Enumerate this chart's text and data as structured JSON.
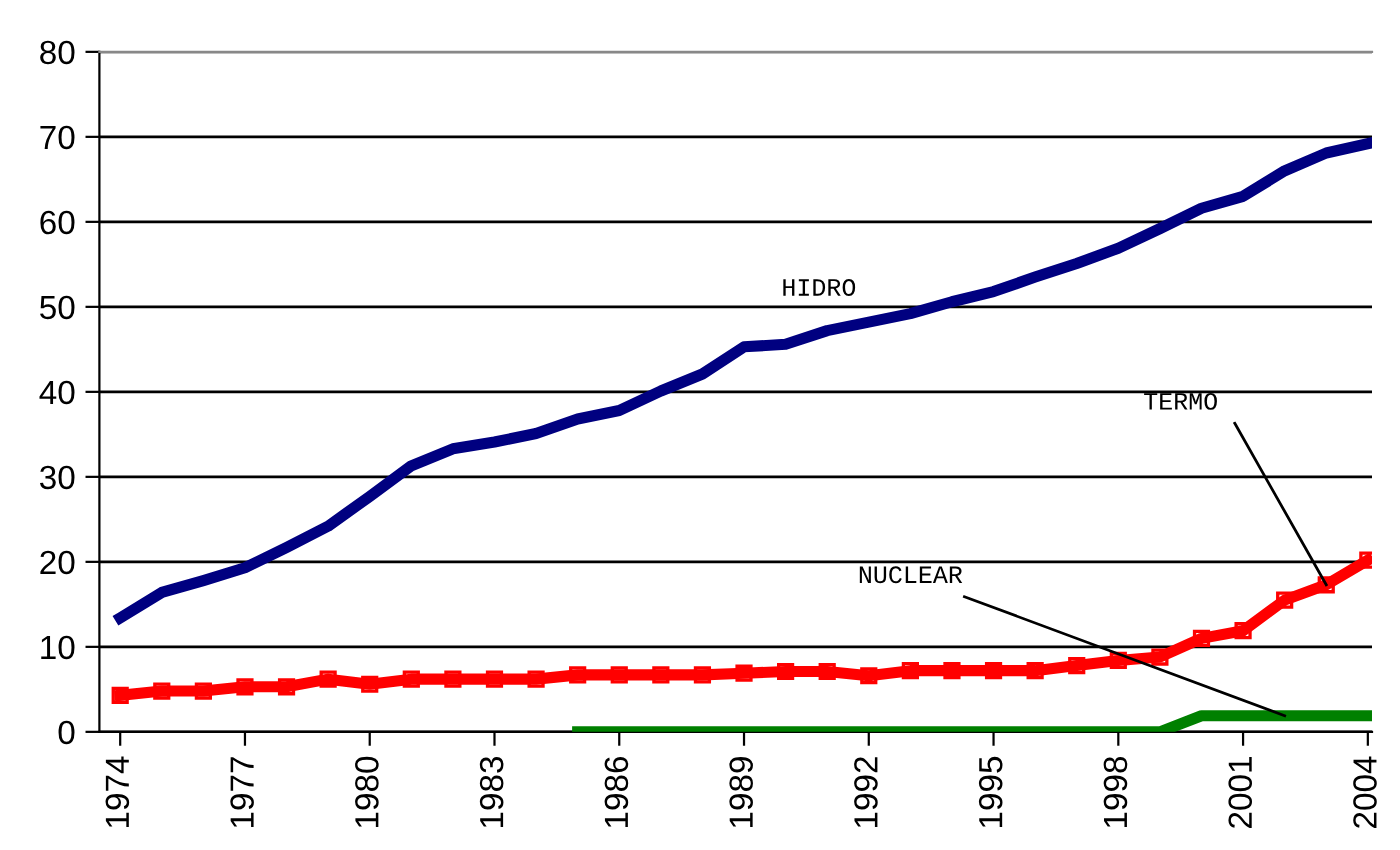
{
  "chart_data": {
    "type": "line",
    "x": [
      1974,
      1975,
      1976,
      1977,
      1978,
      1979,
      1980,
      1981,
      1982,
      1983,
      1984,
      1985,
      1986,
      1987,
      1988,
      1989,
      1990,
      1991,
      1992,
      1993,
      1994,
      1995,
      1996,
      1997,
      1998,
      1999,
      2000,
      2001,
      2002,
      2003,
      2004
    ],
    "series": [
      {
        "name": "HIDRO",
        "color": "#000080",
        "marker": "none",
        "values": [
          13.4,
          16.4,
          17.8,
          19.3,
          21.7,
          24.2,
          27.7,
          31.3,
          33.3,
          34.1,
          35.1,
          36.8,
          37.8,
          40.1,
          42.1,
          45.3,
          45.6,
          47.2,
          48.2,
          49.2,
          50.6,
          51.8,
          53.5,
          55.1,
          56.9,
          59.2,
          61.6,
          63.0,
          66.0,
          68.1,
          69.2
        ]
      },
      {
        "name": "TERMO",
        "color": "#ff0000",
        "marker": "square",
        "values": [
          4.3,
          4.8,
          4.8,
          5.3,
          5.3,
          6.2,
          5.6,
          6.2,
          6.2,
          6.2,
          6.2,
          6.7,
          6.7,
          6.7,
          6.7,
          6.9,
          7.1,
          7.1,
          6.6,
          7.2,
          7.2,
          7.2,
          7.2,
          7.8,
          8.4,
          8.8,
          11.0,
          11.9,
          15.5,
          17.3,
          20.2
        ]
      },
      {
        "name": "NUCLEAR",
        "color": "#008000",
        "marker": "none",
        "values": [
          null,
          null,
          null,
          null,
          null,
          null,
          null,
          null,
          null,
          null,
          null,
          0,
          0,
          0,
          0,
          0,
          0,
          0,
          0,
          0,
          0,
          0,
          0,
          0,
          0,
          0,
          1.9,
          1.9,
          1.9,
          1.9,
          1.9
        ]
      }
    ],
    "xlim": [
      1973.5,
      2004.1
    ],
    "xticks": [
      1974,
      1977,
      1980,
      1983,
      1986,
      1989,
      1992,
      1995,
      1998,
      2001,
      2004
    ],
    "ylim": [
      0,
      80
    ],
    "yticks": [
      0,
      10,
      20,
      30,
      40,
      50,
      60,
      70,
      80
    ],
    "grid": "y",
    "legend": false,
    "line_style": "solid"
  }
}
